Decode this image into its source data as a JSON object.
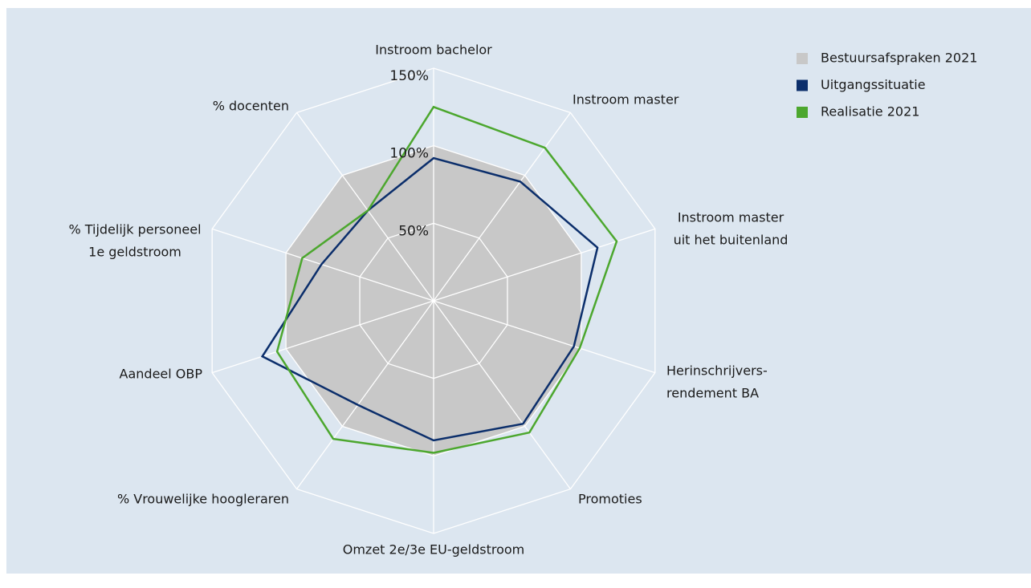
{
  "chart_data": {
    "type": "radar",
    "categories": [
      [
        "Instroom bachelor"
      ],
      [
        "Instroom master"
      ],
      [
        "Instroom master",
        "uit het buitenland"
      ],
      [
        "Herinschrijvers-",
        "rendement BA"
      ],
      [
        "Promoties"
      ],
      [
        "Omzet 2e/3e EU-geldstroom"
      ],
      [
        "% Vrouwelijke hoogleraren"
      ],
      [
        "Aandeel OBP"
      ],
      [
        "% Tijdelijk personeel",
        "1e geldstroom"
      ],
      [
        "% docenten"
      ]
    ],
    "series": [
      {
        "name": "Bestuursafspraken 2021",
        "color": "#c8c8c8",
        "fill": true,
        "values": [
          100,
          100,
          100,
          100,
          100,
          100,
          100,
          100,
          100,
          100
        ]
      },
      {
        "name": "Uitgangssituatie",
        "color": "#0b2e6b",
        "fill": false,
        "values": [
          92,
          95,
          111,
          95,
          98,
          90,
          83,
          116,
          76,
          72
        ]
      },
      {
        "name": "Realisatie 2021",
        "color": "#4ca72e",
        "fill": false,
        "values": [
          125,
          122,
          124,
          99,
          105,
          98,
          110,
          106,
          89,
          72
        ]
      }
    ],
    "rlim": [
      0,
      150
    ],
    "rticks": [
      {
        "value": 50,
        "label": "50%"
      },
      {
        "value": 100,
        "label": "100%"
      },
      {
        "value": 150,
        "label": "150%"
      }
    ],
    "grid": true,
    "legend": "top-right"
  }
}
